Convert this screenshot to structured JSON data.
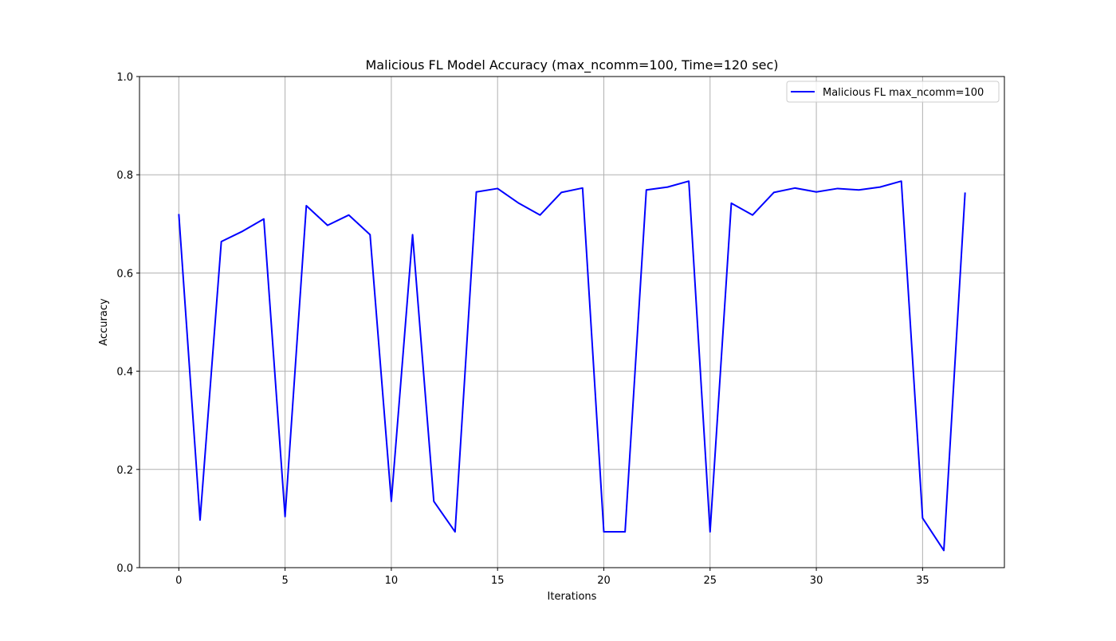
{
  "colors": {
    "series": "#0000ff",
    "grid": "#b0b0b0",
    "axes": "#000000",
    "background": "#ffffff"
  },
  "chart_data": {
    "type": "line",
    "title": "Malicious FL Model Accuracy (max_ncomm=100, Time=120 sec)",
    "xlabel": "Iterations",
    "ylabel": "Accuracy",
    "xlim": [
      -1.85,
      38.85
    ],
    "ylim": [
      0.0,
      1.0
    ],
    "grid": true,
    "legend_position": "top-right",
    "x_ticks": [
      0,
      5,
      10,
      15,
      20,
      25,
      30,
      35
    ],
    "y_ticks": [
      0.0,
      0.2,
      0.4,
      0.6,
      0.8,
      1.0
    ],
    "x_tick_labels": [
      "0",
      "5",
      "10",
      "15",
      "20",
      "25",
      "30",
      "35"
    ],
    "y_tick_labels": [
      "0.0",
      "0.2",
      "0.4",
      "0.6",
      "0.8",
      "1.0"
    ],
    "series": [
      {
        "name": "Malicious FL max_ncomm=100",
        "color": "#0000ff",
        "x": [
          0,
          1,
          2,
          3,
          4,
          5,
          6,
          7,
          8,
          9,
          10,
          11,
          12,
          13,
          14,
          15,
          16,
          17,
          18,
          19,
          20,
          21,
          22,
          23,
          24,
          25,
          26,
          27,
          28,
          29,
          30,
          31,
          32,
          33,
          34,
          35,
          36,
          37
        ],
        "y": [
          0.72,
          0.097,
          0.664,
          0.685,
          0.71,
          0.104,
          0.737,
          0.697,
          0.718,
          0.678,
          0.135,
          0.678,
          0.135,
          0.073,
          0.765,
          0.772,
          0.742,
          0.718,
          0.764,
          0.773,
          0.073,
          0.073,
          0.769,
          0.775,
          0.787,
          0.073,
          0.742,
          0.718,
          0.764,
          0.773,
          0.765,
          0.772,
          0.769,
          0.775,
          0.787,
          0.101,
          0.035,
          0.764
        ]
      }
    ]
  }
}
